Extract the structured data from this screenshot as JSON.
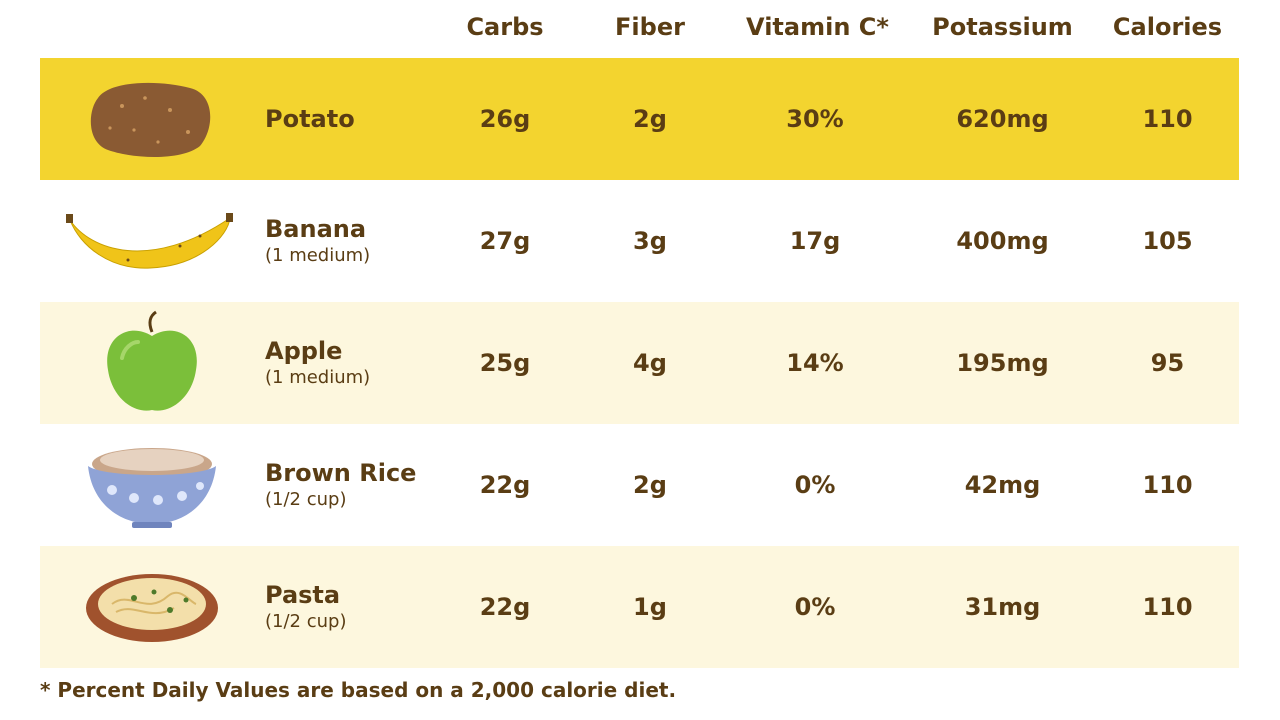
{
  "columns": [
    "Carbs",
    "Fiber",
    "Vitamin C*",
    "Potassium",
    "Calories"
  ],
  "colors": {
    "highlight": "#f3d42f",
    "alt": "#fdf7de",
    "plain": "#ffffff",
    "text": "#5a3d14"
  },
  "rows": [
    {
      "name": "Potato",
      "serving": "",
      "icon": "potato-icon",
      "values": [
        "26g",
        "2g",
        "30%",
        "620mg",
        "110"
      ]
    },
    {
      "name": "Banana",
      "serving": "(1 medium)",
      "icon": "banana-icon",
      "values": [
        "27g",
        "3g",
        "17g",
        "400mg",
        "105"
      ]
    },
    {
      "name": "Apple",
      "serving": "(1 medium)",
      "icon": "apple-icon",
      "values": [
        "25g",
        "4g",
        "14%",
        "195mg",
        "95"
      ]
    },
    {
      "name": "Brown Rice",
      "serving": "(1/2 cup)",
      "icon": "rice-bowl-icon",
      "values": [
        "22g",
        "2g",
        "0%",
        "42mg",
        "110"
      ]
    },
    {
      "name": "Pasta",
      "serving": "(1/2 cup)",
      "icon": "pasta-plate-icon",
      "values": [
        "22g",
        "1g",
        "0%",
        "31mg",
        "110"
      ]
    }
  ],
  "footnote": "* Percent Daily Values are based on a 2,000 calorie diet."
}
